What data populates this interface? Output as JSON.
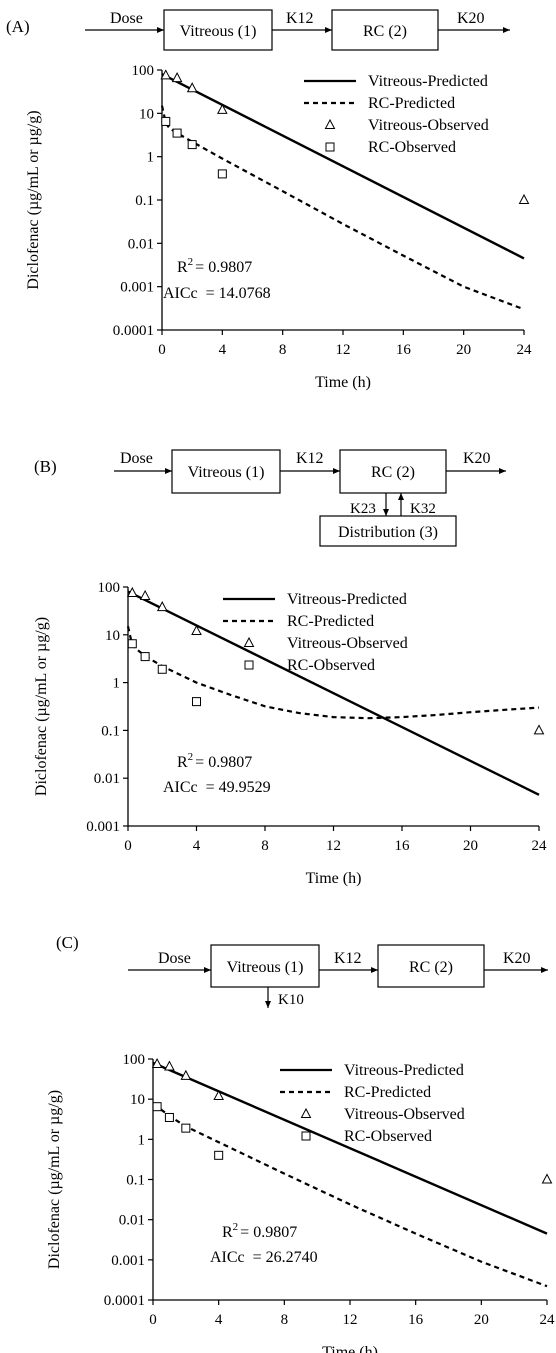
{
  "panels": [
    {
      "label": "(A)",
      "scheme": {
        "dose": "Dose",
        "vitreous": "Vitreous (1)",
        "k12": "K12",
        "rc": "RC (2)",
        "k20": "K20"
      },
      "r2_prefix": "R",
      "r2_sup": "2",
      "r2_value": "= 0.9807",
      "aicc": "AICc  = 14.0768"
    },
    {
      "label": "(B)",
      "scheme": {
        "dose": "Dose",
        "vitreous": "Vitreous (1)",
        "k12": "K12",
        "rc": "RC (2)",
        "k20": "K20",
        "k23": "K23",
        "k32": "K32",
        "distribution": "Distribution (3)"
      },
      "r2_prefix": "R",
      "r2_sup": "2",
      "r2_value": "= 0.9807",
      "aicc": "AICc  = 49.9529"
    },
    {
      "label": "(C)",
      "scheme": {
        "dose": "Dose",
        "vitreous": "Vitreous (1)",
        "k12": "K12",
        "rc": "RC (2)",
        "k20": "K20",
        "k10": "K10"
      },
      "r2_prefix": "R",
      "r2_sup": "2",
      "r2_value": "= 0.9807",
      "aicc": "AICc  = 26.2740"
    }
  ],
  "chart_data": [
    {
      "type": "line",
      "xlabel": "Time (h)",
      "ylabel": "Diclofenac (µg/mL or µg/g)",
      "xlim": [
        0,
        24
      ],
      "xticks": [
        0,
        4,
        8,
        12,
        16,
        20,
        24
      ],
      "ylim": [
        0.0001,
        100
      ],
      "yscale": "log",
      "yticks": [
        100,
        10,
        1,
        0.1,
        0.01,
        0.001,
        0.0001
      ],
      "ytick_labels": [
        "100",
        "10",
        "1",
        "0.1",
        "0.01",
        "0.001",
        "0.0001"
      ],
      "legend_position": "top-right",
      "series": [
        {
          "name": "Vitreous-Predicted",
          "style": "solid",
          "x": [
            0,
            24
          ],
          "y": [
            80,
            0.0045
          ]
        },
        {
          "name": "RC-Predicted",
          "style": "dashed",
          "x": [
            0,
            0.25,
            0.5,
            1,
            2,
            4,
            8,
            12,
            16,
            20,
            24
          ],
          "y": [
            15,
            6,
            4.5,
            3.5,
            2.2,
            0.9,
            0.16,
            0.028,
            0.0052,
            0.001,
            0.0003
          ]
        },
        {
          "name": "Vitreous-Observed",
          "marker": "triangle",
          "x": [
            0.25,
            1,
            2,
            4,
            24
          ],
          "y": [
            75,
            65,
            38,
            12,
            0.1
          ]
        },
        {
          "name": "RC-Observed",
          "marker": "square",
          "x": [
            0.25,
            1,
            2,
            4
          ],
          "y": [
            6.5,
            3.5,
            1.9,
            0.4
          ]
        }
      ]
    },
    {
      "type": "line",
      "xlabel": "Time (h)",
      "ylabel": "Diclofenac (µg/mL or µg/g)",
      "xlim": [
        0,
        24
      ],
      "xticks": [
        0,
        4,
        8,
        12,
        16,
        20,
        24
      ],
      "ylim": [
        0.001,
        100
      ],
      "yscale": "log",
      "yticks": [
        100,
        10,
        1,
        0.1,
        0.01,
        0.001
      ],
      "ytick_labels": [
        "100",
        "10",
        "1",
        "0.1",
        "0.01",
        "0.001"
      ],
      "legend_position": "top-right",
      "series": [
        {
          "name": "Vitreous-Predicted",
          "style": "solid",
          "x": [
            0,
            24
          ],
          "y": [
            80,
            0.0045
          ]
        },
        {
          "name": "RC-Predicted",
          "style": "dashed",
          "x": [
            0,
            0.25,
            0.5,
            1,
            2,
            4,
            6,
            8,
            10,
            12,
            14,
            16,
            18,
            20,
            22,
            24
          ],
          "y": [
            15,
            6,
            5,
            3.6,
            2.2,
            1.0,
            0.55,
            0.32,
            0.23,
            0.19,
            0.18,
            0.19,
            0.21,
            0.24,
            0.27,
            0.3
          ]
        },
        {
          "name": "Vitreous-Observed",
          "marker": "triangle",
          "x": [
            0.25,
            1,
            2,
            4,
            24
          ],
          "y": [
            75,
            65,
            38,
            12,
            0.1
          ]
        },
        {
          "name": "RC-Observed",
          "marker": "square",
          "x": [
            0.25,
            1,
            2,
            4
          ],
          "y": [
            6.5,
            3.5,
            1.9,
            0.4
          ]
        }
      ]
    },
    {
      "type": "line",
      "xlabel": "Time (h)",
      "ylabel": "Diclofenac (µg/mL or µg/g)",
      "xlim": [
        0,
        24
      ],
      "xticks": [
        0,
        4,
        8,
        12,
        16,
        20,
        24
      ],
      "ylim": [
        0.0001,
        100
      ],
      "yscale": "log",
      "yticks": [
        100,
        10,
        1,
        0.1,
        0.01,
        0.001,
        0.0001
      ],
      "ytick_labels": [
        "100",
        "10",
        "1",
        "0.1",
        "0.01",
        "0.001",
        "0.0001"
      ],
      "legend_position": "top-right",
      "series": [
        {
          "name": "Vitreous-Predicted",
          "style": "solid",
          "x": [
            0,
            24
          ],
          "y": [
            80,
            0.0045
          ]
        },
        {
          "name": "RC-Predicted",
          "style": "dashed",
          "x": [
            0,
            0.25,
            0.5,
            1,
            2,
            4,
            8,
            12,
            16,
            20,
            24
          ],
          "y": [
            7,
            6.5,
            5.5,
            3.8,
            2.1,
            0.85,
            0.14,
            0.024,
            0.0045,
            0.0009,
            0.00022
          ]
        },
        {
          "name": "Vitreous-Observed",
          "marker": "triangle",
          "x": [
            0.25,
            1,
            2,
            4,
            24
          ],
          "y": [
            75,
            65,
            38,
            12,
            0.1
          ]
        },
        {
          "name": "RC-Observed",
          "marker": "square",
          "x": [
            0.25,
            1,
            2,
            4
          ],
          "y": [
            6.5,
            3.5,
            1.9,
            0.4
          ]
        }
      ]
    }
  ]
}
